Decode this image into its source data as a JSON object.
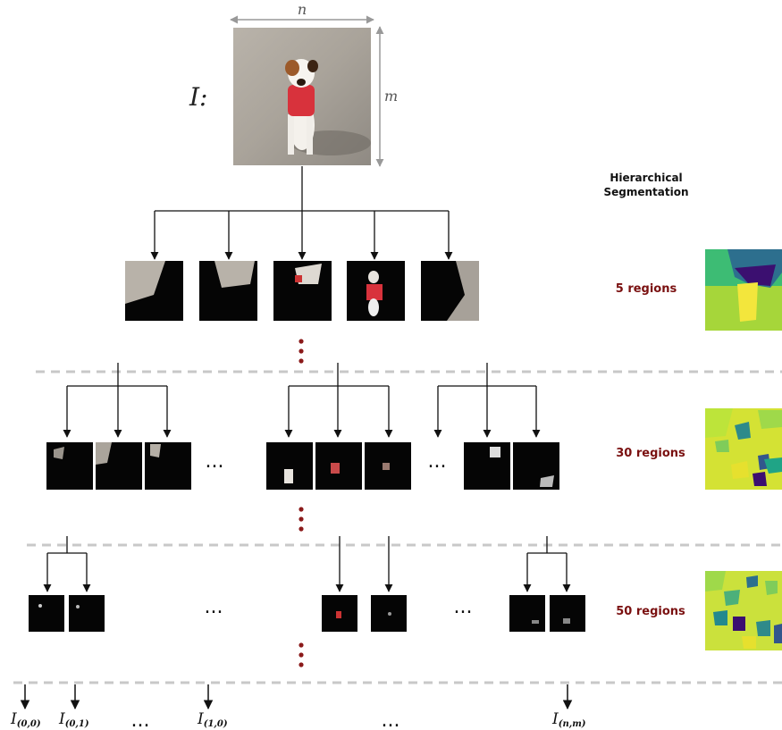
{
  "input": {
    "label": "I:",
    "width_symbol": "n",
    "height_symbol": "m"
  },
  "title": {
    "line1": "Hierarchical",
    "line2": "Segmentation"
  },
  "levels": [
    {
      "label": "5 regions"
    },
    {
      "label": "30 regions"
    },
    {
      "label": "50 regions"
    }
  ],
  "ellipsis": "...",
  "outputs": [
    {
      "base": "I",
      "sub": "(0,0)"
    },
    {
      "base": "I",
      "sub": "(0,1)"
    },
    {
      "base": "I",
      "sub": "(1,0)"
    },
    {
      "base": "I",
      "sub": "(n,m)"
    }
  ],
  "colors": {
    "region_label": "#7a1010",
    "dots": "#8b1a1a",
    "dashed": "#c8c8c8",
    "dim_arrow": "#999999"
  }
}
